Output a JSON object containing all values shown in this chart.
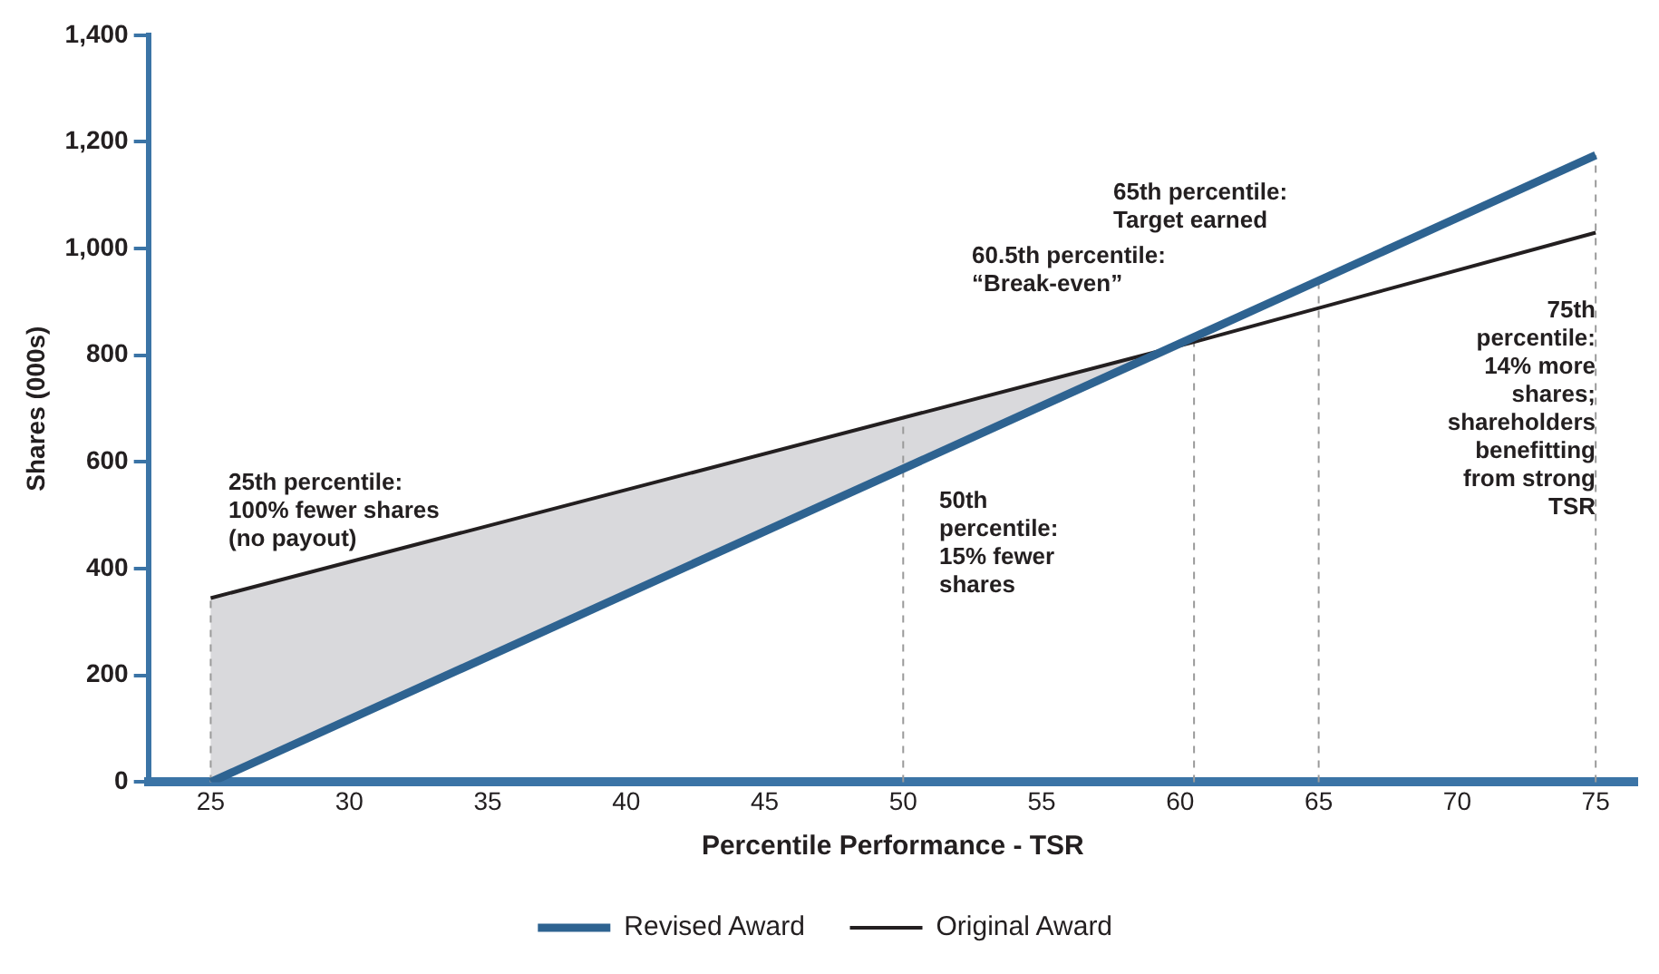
{
  "chart_data": {
    "type": "line",
    "xlabel": "Percentile Performance - TSR",
    "ylabel": "Shares (000s)",
    "x": [
      25,
      75
    ],
    "series": [
      {
        "name": "Original Award",
        "color": "#231f20",
        "x": [
          25,
          60.5,
          75
        ],
        "values": [
          345,
          825,
          1030
        ],
        "lower": [
          0,
          825,
          1030
        ],
        "upper": [
          345,
          825,
          1030
        ]
      },
      {
        "name": "Revised Award",
        "color": "#2e6391",
        "values": [
          0,
          1175
        ]
      }
    ],
    "xlim": [
      22.75,
      76.5
    ],
    "xticks": [
      25,
      30,
      35,
      40,
      45,
      50,
      55,
      60,
      65,
      70,
      75
    ],
    "ylim": [
      0,
      1400
    ],
    "yticks": [
      0,
      200,
      400,
      600,
      800,
      {
        "value": 1000,
        "label": "1,000"
      },
      {
        "value": 1200,
        "label": "1,200"
      },
      {
        "value": 1400,
        "label": "1,400"
      }
    ],
    "grid": false,
    "legend": "bottom",
    "marker": "none",
    "line_style": "solid",
    "ref_lines": [
      {
        "axis": "x",
        "value": 25,
        "color": "#9a9a9a",
        "line_style": "dashed"
      },
      {
        "axis": "x",
        "value": 50,
        "color": "#9a9a9a",
        "line_style": "dashed"
      },
      {
        "axis": "x",
        "value": 60.5,
        "color": "#9a9a9a",
        "line_style": "dashed"
      },
      {
        "axis": "x",
        "value": 65,
        "color": "#9a9a9a",
        "line_style": "dashed"
      },
      {
        "axis": "x",
        "value": 75,
        "color": "#9a9a9a",
        "line_style": "dashed"
      }
    ],
    "annotations": [
      "25th percentile:\n100% fewer shares\n(no payout)",
      "50th\npercentile:\n15% fewer\nshares",
      "60.5th percentile:\n“Break-even”",
      "65th percentile:\nTarget earned",
      "75th\npercentile:\n14% more\nshares;\nshareholders\nbenefitting\nfrom strong\nTSR"
    ]
  }
}
